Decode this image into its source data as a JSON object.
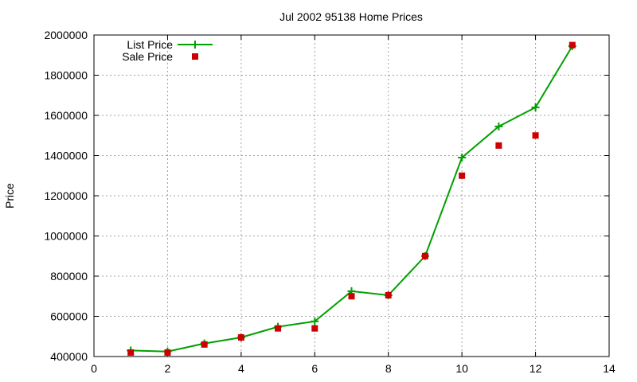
{
  "chart_data": {
    "type": "line",
    "title": "Jul 2002 95138 Home Prices",
    "xlabel": "",
    "ylabel": "Price",
    "xlim": [
      0,
      14
    ],
    "ylim": [
      400000,
      2000000
    ],
    "xticks": [
      0,
      2,
      4,
      6,
      8,
      10,
      12,
      14
    ],
    "yticks": [
      400000,
      600000,
      800000,
      1000000,
      1200000,
      1400000,
      1600000,
      1800000,
      2000000
    ],
    "grid": true,
    "legend_position": "top-left",
    "series": [
      {
        "name": "List Price",
        "style": "line-with-plus-markers",
        "color": "#00a000",
        "x": [
          1,
          2,
          3,
          4,
          5,
          6,
          7,
          8,
          9,
          10,
          11,
          12,
          13
        ],
        "y": [
          430000,
          425000,
          465000,
          495000,
          548000,
          575000,
          725000,
          705000,
          900000,
          1390000,
          1545000,
          1640000,
          1945000
        ]
      },
      {
        "name": "Sale Price",
        "style": "square-markers",
        "color": "#cc0000",
        "x": [
          1,
          2,
          3,
          4,
          5,
          6,
          7,
          8,
          9,
          10,
          11,
          12,
          13
        ],
        "y": [
          420000,
          420000,
          460000,
          495000,
          540000,
          540000,
          700000,
          705000,
          900000,
          1300000,
          1450000,
          1500000,
          1950000
        ]
      }
    ]
  }
}
